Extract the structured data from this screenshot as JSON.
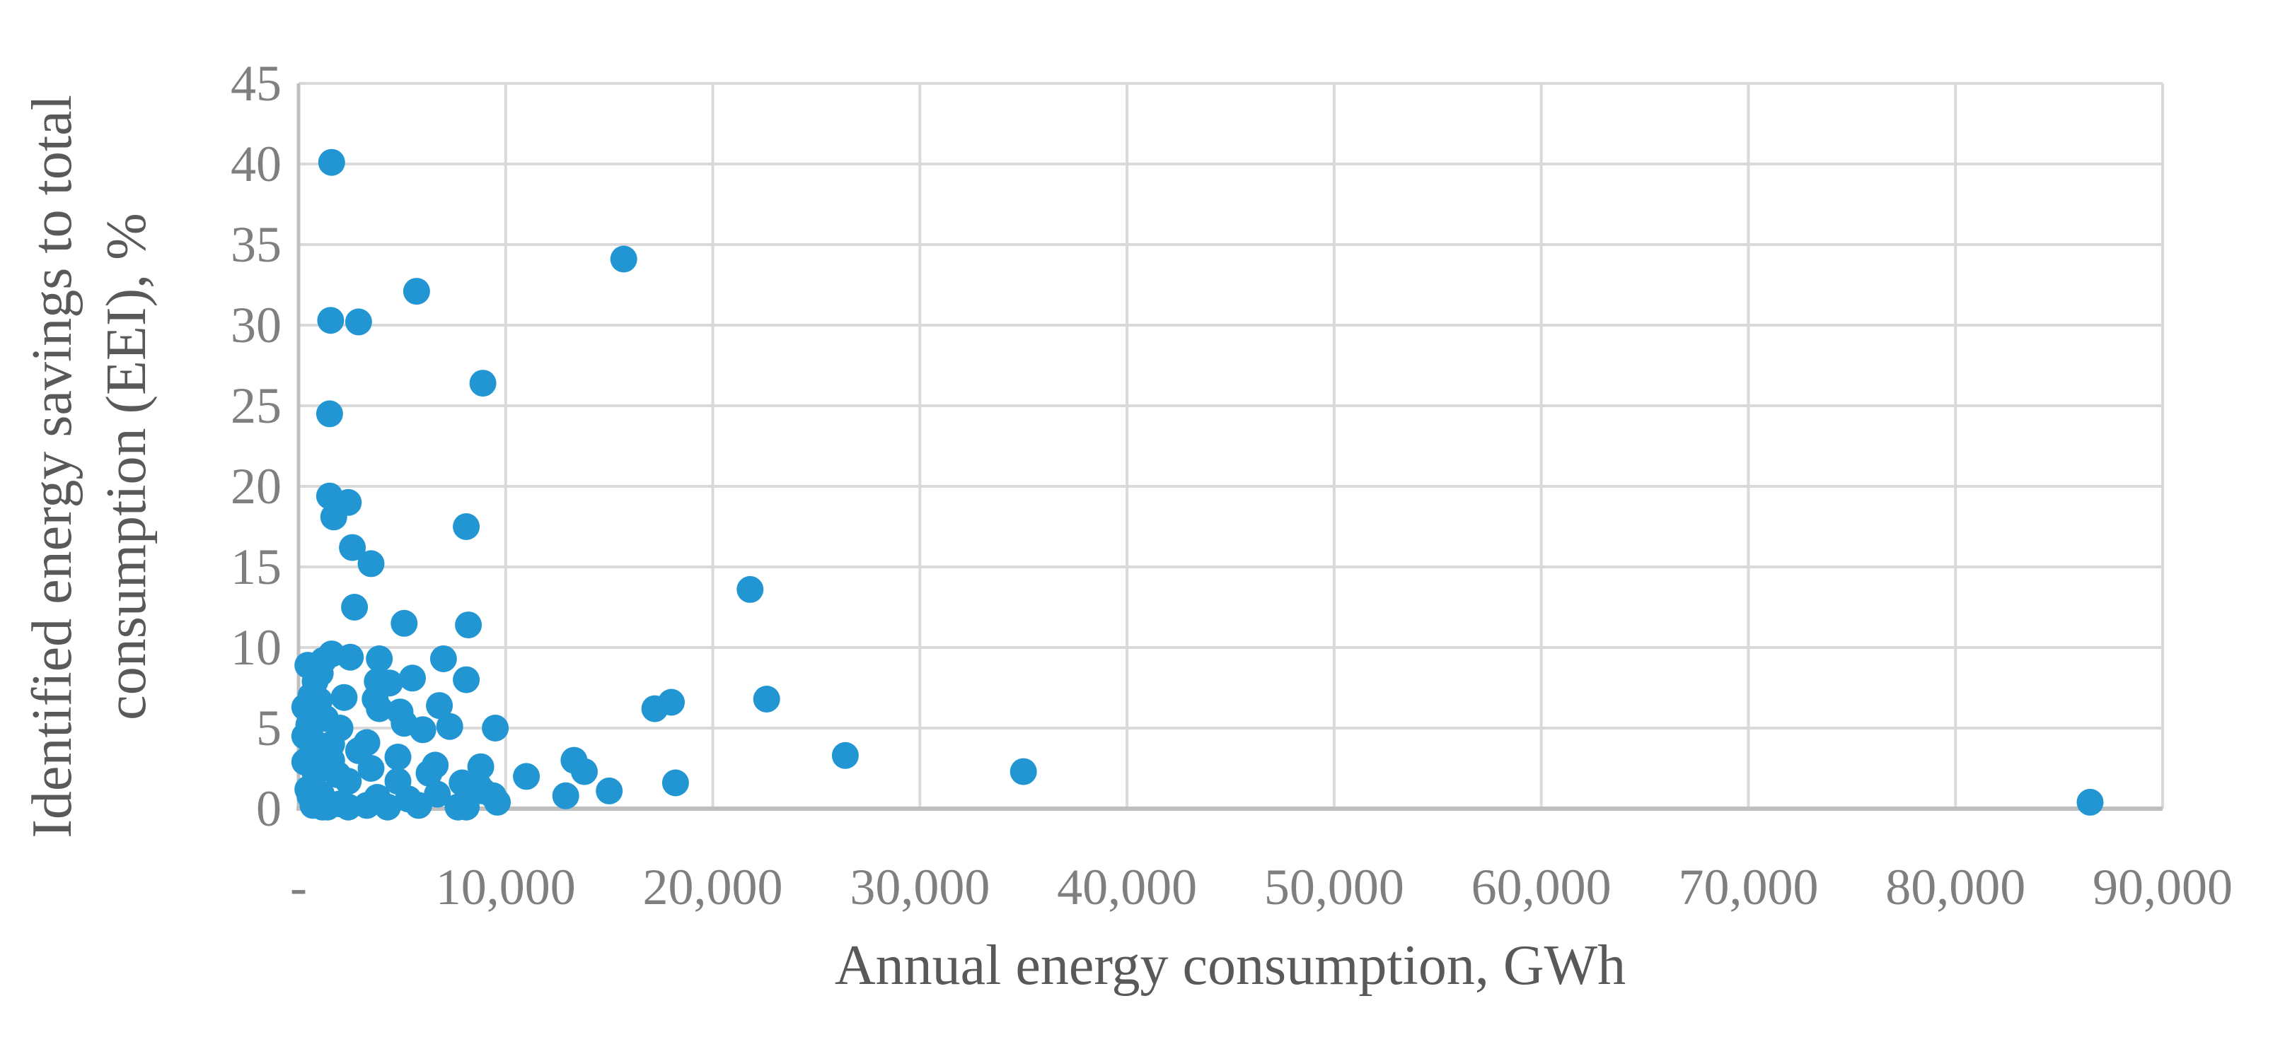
{
  "chart_data": {
    "type": "scatter",
    "title": "",
    "xlabel": "Annual energy consumption, GWh",
    "ylabel": "Identified energy savings to total consumption (EEI), %",
    "ylabel_lines": [
      "Identified energy savings to total",
      "consumption (EEI), %"
    ],
    "xlim": [
      0,
      90000
    ],
    "ylim": [
      0,
      45
    ],
    "grid": "on",
    "legend": "none",
    "x_ticks": [
      {
        "v": 0,
        "label": "-"
      },
      {
        "v": 10000,
        "label": "10,000"
      },
      {
        "v": 20000,
        "label": "20,000"
      },
      {
        "v": 30000,
        "label": "30,000"
      },
      {
        "v": 40000,
        "label": "40,000"
      },
      {
        "v": 50000,
        "label": "50,000"
      },
      {
        "v": 60000,
        "label": "60,000"
      },
      {
        "v": 70000,
        "label": "70,000"
      },
      {
        "v": 80000,
        "label": "80,000"
      },
      {
        "v": 90000,
        "label": "90,000"
      }
    ],
    "y_ticks": [
      {
        "v": 0,
        "label": "0"
      },
      {
        "v": 5,
        "label": "5"
      },
      {
        "v": 10,
        "label": "10"
      },
      {
        "v": 15,
        "label": "15"
      },
      {
        "v": 20,
        "label": "20"
      },
      {
        "v": 25,
        "label": "25"
      },
      {
        "v": 30,
        "label": "30"
      },
      {
        "v": 35,
        "label": "35"
      },
      {
        "v": 40,
        "label": "40"
      },
      {
        "v": 45,
        "label": "45"
      }
    ],
    "colors": {
      "marker": "#2196d3",
      "gridline": "#d9d9d9",
      "axis_line": "#bfbfbf",
      "tick_text": "#7f7f7f",
      "title_text": "#595959"
    },
    "marker_radius_px": 19,
    "points": [
      [
        1600,
        40.1
      ],
      [
        15700,
        34.1
      ],
      [
        5700,
        32.1
      ],
      [
        1550,
        30.3
      ],
      [
        2900,
        30.2
      ],
      [
        8900,
        26.4
      ],
      [
        1500,
        24.5
      ],
      [
        1500,
        19.4
      ],
      [
        2400,
        19.0
      ],
      [
        1700,
        18.1
      ],
      [
        8100,
        17.5
      ],
      [
        2600,
        16.2
      ],
      [
        3500,
        15.2
      ],
      [
        21800,
        13.6
      ],
      [
        2700,
        12.5
      ],
      [
        5100,
        11.5
      ],
      [
        8200,
        11.4
      ],
      [
        1200,
        9.2
      ],
      [
        1600,
        9.6
      ],
      [
        2500,
        9.4
      ],
      [
        3900,
        9.3
      ],
      [
        7000,
        9.3
      ],
      [
        450,
        8.9
      ],
      [
        800,
        7.9
      ],
      [
        1050,
        8.4
      ],
      [
        3800,
        7.9
      ],
      [
        4400,
        7.8
      ],
      [
        5500,
        8.1
      ],
      [
        8100,
        8.0
      ],
      [
        600,
        7.0
      ],
      [
        300,
        6.3
      ],
      [
        1000,
        6.7
      ],
      [
        2200,
        6.9
      ],
      [
        3700,
        6.8
      ],
      [
        3900,
        6.2
      ],
      [
        4900,
        6.0
      ],
      [
        6800,
        6.4
      ],
      [
        17200,
        6.2
      ],
      [
        18000,
        6.6
      ],
      [
        22600,
        6.8
      ],
      [
        900,
        5.8
      ],
      [
        1300,
        5.6
      ],
      [
        500,
        5.2
      ],
      [
        2000,
        5.0
      ],
      [
        5100,
        5.3
      ],
      [
        6000,
        4.9
      ],
      [
        7300,
        5.1
      ],
      [
        9500,
        5.0
      ],
      [
        300,
        4.5
      ],
      [
        700,
        4.2
      ],
      [
        1600,
        4.0
      ],
      [
        3300,
        4.1
      ],
      [
        4800,
        3.2
      ],
      [
        600,
        3.3
      ],
      [
        2900,
        3.6
      ],
      [
        300,
        2.9
      ],
      [
        1000,
        3.0
      ],
      [
        1600,
        3.0
      ],
      [
        3500,
        2.5
      ],
      [
        6600,
        2.7
      ],
      [
        8800,
        2.6
      ],
      [
        13300,
        3.0
      ],
      [
        6300,
        2.2
      ],
      [
        26400,
        3.3
      ],
      [
        35000,
        2.3
      ],
      [
        800,
        2.2
      ],
      [
        1900,
        2.1
      ],
      [
        2400,
        1.7
      ],
      [
        4800,
        1.7
      ],
      [
        7900,
        1.6
      ],
      [
        8700,
        1.4
      ],
      [
        11000,
        2.0
      ],
      [
        13800,
        2.3
      ],
      [
        18200,
        1.6
      ],
      [
        15000,
        1.1
      ],
      [
        450,
        1.2
      ],
      [
        550,
        0.8
      ],
      [
        1100,
        0.9
      ],
      [
        3800,
        0.7
      ],
      [
        5300,
        0.6
      ],
      [
        6700,
        0.9
      ],
      [
        8900,
        1.1
      ],
      [
        12900,
        0.8
      ],
      [
        9400,
        0.8
      ],
      [
        700,
        0.2
      ],
      [
        1150,
        0.1
      ],
      [
        1400,
        0.1
      ],
      [
        2000,
        0.3
      ],
      [
        2400,
        0.1
      ],
      [
        3300,
        0.2
      ],
      [
        4300,
        0.1
      ],
      [
        5800,
        0.2
      ],
      [
        7700,
        0.1
      ],
      [
        8100,
        0.1
      ],
      [
        9600,
        0.4
      ],
      [
        86500,
        0.4
      ]
    ]
  }
}
